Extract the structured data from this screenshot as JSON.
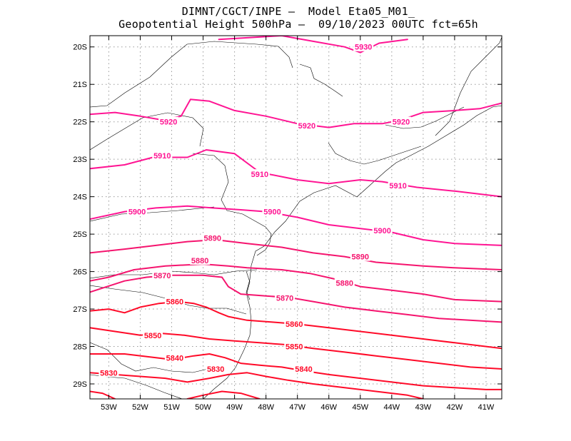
{
  "title": {
    "line1": "DIMNT/CGCT/INPE –  Model Eta05_M01_",
    "line2": "Geopotential Height 500hPa –  09/10/2023 00UTC fct=65h"
  },
  "axes": {
    "lon_labels": [
      "53W",
      "52W",
      "51W",
      "50W",
      "49W",
      "48W",
      "47W",
      "46W",
      "45W",
      "44W",
      "43W",
      "42W",
      "41W"
    ],
    "lat_labels": [
      "20S",
      "21S",
      "22S",
      "23S",
      "24S",
      "25S",
      "26S",
      "27S",
      "28S",
      "29S"
    ]
  },
  "colors": {
    "contour_high": "#ff1493",
    "contour_mid": "#f5146e",
    "contour_low": "#ff0a28",
    "coastline": "#000000",
    "grid": "#9a9a9a"
  },
  "chart_data": {
    "type": "contour",
    "field": "Geopotential Height 500hPa",
    "lon_range": [
      -53.6,
      -40.5
    ],
    "lat_range": [
      -29.4,
      -19.7
    ],
    "grid": true,
    "contour_levels": [
      5830,
      5840,
      5850,
      5860,
      5870,
      5880,
      5890,
      5900,
      5910,
      5920,
      5930
    ],
    "contour_labels": [
      {
        "value": 5930,
        "text": "5930",
        "lon": -44.9,
        "lat": -20.0
      },
      {
        "value": 5920,
        "text": "5920",
        "lon": -51.1,
        "lat": -22.0
      },
      {
        "value": 5920,
        "text": "5920",
        "lon": -46.7,
        "lat": -22.1
      },
      {
        "value": 5920,
        "text": "5920",
        "lon": -43.7,
        "lat": -22.0
      },
      {
        "value": 5910,
        "text": "5910",
        "lon": -51.3,
        "lat": -22.9
      },
      {
        "value": 5910,
        "text": "5910",
        "lon": -48.2,
        "lat": -23.4
      },
      {
        "value": 5910,
        "text": "5910",
        "lon": -43.8,
        "lat": -23.7
      },
      {
        "value": 5900,
        "text": "5900",
        "lon": -52.1,
        "lat": -24.4
      },
      {
        "value": 5900,
        "text": "5900",
        "lon": -47.8,
        "lat": -24.4
      },
      {
        "value": 5900,
        "text": "5900",
        "lon": -44.3,
        "lat": -24.9
      },
      {
        "value": 5890,
        "text": "5890",
        "lon": -49.7,
        "lat": -25.1
      },
      {
        "value": 5890,
        "text": "5890",
        "lon": -45.0,
        "lat": -25.6
      },
      {
        "value": 5880,
        "text": "5880",
        "lon": -50.1,
        "lat": -25.7
      },
      {
        "value": 5880,
        "text": "5880",
        "lon": -45.5,
        "lat": -26.3
      },
      {
        "value": 5870,
        "text": "5870",
        "lon": -51.3,
        "lat": -26.1
      },
      {
        "value": 5870,
        "text": "5870",
        "lon": -47.4,
        "lat": -26.7
      },
      {
        "value": 5860,
        "text": "5860",
        "lon": -50.9,
        "lat": -26.8
      },
      {
        "value": 5860,
        "text": "5860",
        "lon": -47.1,
        "lat": -27.4
      },
      {
        "value": 5850,
        "text": "5850",
        "lon": -51.6,
        "lat": -27.7
      },
      {
        "value": 5850,
        "text": "5850",
        "lon": -47.1,
        "lat": -28.0
      },
      {
        "value": 5840,
        "text": "5840",
        "lon": -50.9,
        "lat": -28.3
      },
      {
        "value": 5840,
        "text": "5840",
        "lon": -46.8,
        "lat": -28.6
      },
      {
        "value": 5830,
        "text": "5830",
        "lon": -53.0,
        "lat": -28.7
      },
      {
        "value": 5830,
        "text": "5830",
        "lon": -49.6,
        "lat": -28.6
      }
    ],
    "contour_lines": [
      {
        "value": 5930,
        "points": [
          [
            -49.5,
            -19.8
          ],
          [
            -47.5,
            -19.7
          ],
          [
            -46.5,
            -19.85
          ],
          [
            -45.5,
            -20.0
          ],
          [
            -45.0,
            -20.15
          ],
          [
            -44.4,
            -19.9
          ],
          [
            -43.5,
            -19.8
          ]
        ]
      },
      {
        "value": 5920,
        "points": [
          [
            -53.6,
            -21.8
          ],
          [
            -52.8,
            -21.75
          ],
          [
            -52.0,
            -21.85
          ],
          [
            -51.3,
            -21.95
          ],
          [
            -50.7,
            -21.85
          ],
          [
            -50.4,
            -21.4
          ],
          [
            -49.8,
            -21.45
          ],
          [
            -49.0,
            -21.7
          ],
          [
            -48.0,
            -21.85
          ],
          [
            -47.0,
            -22.05
          ],
          [
            -46.0,
            -22.15
          ],
          [
            -45.2,
            -22.05
          ],
          [
            -44.3,
            -22.05
          ],
          [
            -43.7,
            -21.95
          ],
          [
            -43.0,
            -21.75
          ],
          [
            -42.0,
            -21.7
          ],
          [
            -41.2,
            -21.65
          ],
          [
            -40.5,
            -21.5
          ]
        ]
      },
      {
        "value": 5910,
        "points": [
          [
            -53.6,
            -23.25
          ],
          [
            -52.5,
            -23.15
          ],
          [
            -51.6,
            -22.95
          ],
          [
            -51.0,
            -22.95
          ],
          [
            -50.5,
            -22.95
          ],
          [
            -49.9,
            -22.75
          ],
          [
            -49.0,
            -22.85
          ],
          [
            -48.2,
            -23.35
          ],
          [
            -47.0,
            -23.55
          ],
          [
            -46.0,
            -23.65
          ],
          [
            -45.0,
            -23.55
          ],
          [
            -44.3,
            -23.6
          ],
          [
            -43.2,
            -23.75
          ],
          [
            -42.0,
            -23.85
          ],
          [
            -40.5,
            -24.0
          ]
        ]
      },
      {
        "value": 5900,
        "points": [
          [
            -53.6,
            -24.6
          ],
          [
            -52.5,
            -24.4
          ],
          [
            -51.5,
            -24.3
          ],
          [
            -50.5,
            -24.25
          ],
          [
            -49.7,
            -24.3
          ],
          [
            -48.8,
            -24.35
          ],
          [
            -48.0,
            -24.4
          ],
          [
            -47.0,
            -24.55
          ],
          [
            -46.0,
            -24.75
          ],
          [
            -45.0,
            -24.85
          ],
          [
            -44.0,
            -24.95
          ],
          [
            -43.0,
            -25.15
          ],
          [
            -42.0,
            -25.25
          ],
          [
            -40.5,
            -25.3
          ]
        ]
      },
      {
        "value": 5890,
        "points": [
          [
            -53.6,
            -25.5
          ],
          [
            -52.5,
            -25.4
          ],
          [
            -51.5,
            -25.3
          ],
          [
            -50.5,
            -25.2
          ],
          [
            -49.6,
            -25.15
          ],
          [
            -48.6,
            -25.25
          ],
          [
            -47.5,
            -25.35
          ],
          [
            -46.5,
            -25.5
          ],
          [
            -45.5,
            -25.6
          ],
          [
            -44.5,
            -25.75
          ],
          [
            -43.0,
            -25.85
          ],
          [
            -42.0,
            -25.9
          ],
          [
            -40.5,
            -25.95
          ]
        ]
      },
      {
        "value": 5880,
        "points": [
          [
            -53.6,
            -26.25
          ],
          [
            -53.0,
            -26.15
          ],
          [
            -52.2,
            -25.95
          ],
          [
            -51.2,
            -25.85
          ],
          [
            -50.0,
            -25.8
          ],
          [
            -49.2,
            -25.85
          ],
          [
            -48.6,
            -25.9
          ],
          [
            -47.5,
            -25.95
          ],
          [
            -46.6,
            -26.05
          ],
          [
            -45.8,
            -26.2
          ],
          [
            -45.0,
            -26.4
          ],
          [
            -44.0,
            -26.5
          ],
          [
            -43.0,
            -26.6
          ],
          [
            -42.0,
            -26.75
          ],
          [
            -40.5,
            -26.8
          ]
        ]
      },
      {
        "value": 5870,
        "points": [
          [
            -53.6,
            -26.55
          ],
          [
            -52.5,
            -26.25
          ],
          [
            -51.8,
            -26.15
          ],
          [
            -51.0,
            -26.1
          ],
          [
            -50.0,
            -26.1
          ],
          [
            -49.4,
            -26.15
          ],
          [
            -49.2,
            -26.4
          ],
          [
            -48.8,
            -26.6
          ],
          [
            -48.0,
            -26.65
          ],
          [
            -47.2,
            -26.7
          ],
          [
            -46.5,
            -26.8
          ],
          [
            -45.5,
            -26.95
          ],
          [
            -44.5,
            -27.05
          ],
          [
            -43.5,
            -27.15
          ],
          [
            -42.5,
            -27.25
          ],
          [
            -40.5,
            -27.35
          ]
        ]
      },
      {
        "value": 5860,
        "points": [
          [
            -53.6,
            -27.05
          ],
          [
            -53.0,
            -27.0
          ],
          [
            -52.5,
            -27.1
          ],
          [
            -52.0,
            -26.95
          ],
          [
            -51.4,
            -26.85
          ],
          [
            -50.8,
            -26.8
          ],
          [
            -50.3,
            -26.85
          ],
          [
            -49.9,
            -26.95
          ],
          [
            -49.5,
            -27.1
          ],
          [
            -49.2,
            -27.2
          ],
          [
            -48.6,
            -27.3
          ],
          [
            -47.8,
            -27.35
          ],
          [
            -47.0,
            -27.4
          ],
          [
            -46.0,
            -27.5
          ],
          [
            -45.0,
            -27.6
          ],
          [
            -44.0,
            -27.7
          ],
          [
            -43.0,
            -27.8
          ],
          [
            -42.0,
            -27.9
          ],
          [
            -40.5,
            -28.05
          ]
        ]
      },
      {
        "value": 5850,
        "points": [
          [
            -53.6,
            -27.5
          ],
          [
            -52.8,
            -27.6
          ],
          [
            -52.0,
            -27.7
          ],
          [
            -51.3,
            -27.65
          ],
          [
            -50.6,
            -27.7
          ],
          [
            -49.8,
            -27.8
          ],
          [
            -49.0,
            -27.85
          ],
          [
            -48.2,
            -27.9
          ],
          [
            -47.4,
            -27.95
          ],
          [
            -46.5,
            -28.05
          ],
          [
            -45.5,
            -28.15
          ],
          [
            -44.5,
            -28.25
          ],
          [
            -43.5,
            -28.35
          ],
          [
            -42.5,
            -28.45
          ],
          [
            -41.5,
            -28.55
          ],
          [
            -40.5,
            -28.6
          ]
        ]
      },
      {
        "value": 5840,
        "points": [
          [
            -53.6,
            -28.2
          ],
          [
            -52.5,
            -28.2
          ],
          [
            -51.5,
            -28.3
          ],
          [
            -51.0,
            -28.35
          ],
          [
            -50.3,
            -28.25
          ],
          [
            -49.8,
            -28.2
          ],
          [
            -49.3,
            -28.3
          ],
          [
            -48.8,
            -28.45
          ],
          [
            -48.2,
            -28.5
          ],
          [
            -47.5,
            -28.55
          ],
          [
            -46.8,
            -28.65
          ],
          [
            -46.0,
            -28.75
          ],
          [
            -45.0,
            -28.85
          ],
          [
            -44.0,
            -28.95
          ],
          [
            -43.0,
            -29.05
          ],
          [
            -42.0,
            -29.1
          ],
          [
            -41.0,
            -29.15
          ],
          [
            -40.5,
            -29.15
          ]
        ]
      },
      {
        "value": 5830,
        "points": [
          [
            -53.6,
            -28.7
          ],
          [
            -52.8,
            -28.75
          ],
          [
            -52.0,
            -28.8
          ],
          [
            -51.2,
            -28.85
          ],
          [
            -50.5,
            -28.95
          ],
          [
            -49.8,
            -28.85
          ],
          [
            -49.2,
            -28.75
          ],
          [
            -48.6,
            -28.7
          ],
          [
            -48.0,
            -28.8
          ],
          [
            -47.3,
            -28.9
          ],
          [
            -46.5,
            -29.0
          ],
          [
            -45.5,
            -29.1
          ],
          [
            -44.5,
            -29.2
          ],
          [
            -43.5,
            -29.3
          ],
          [
            -43.0,
            -29.4
          ]
        ]
      },
      {
        "value": 5830,
        "points": [
          [
            -50.5,
            -29.4
          ],
          [
            -50.0,
            -29.3
          ],
          [
            -49.4,
            -29.2
          ],
          [
            -48.8,
            -29.25
          ],
          [
            -48.2,
            -29.4
          ]
        ]
      },
      {
        "value": 5830,
        "points": [
          [
            -53.6,
            -29.2
          ],
          [
            -53.2,
            -29.25
          ],
          [
            -52.8,
            -29.4
          ]
        ]
      }
    ]
  }
}
